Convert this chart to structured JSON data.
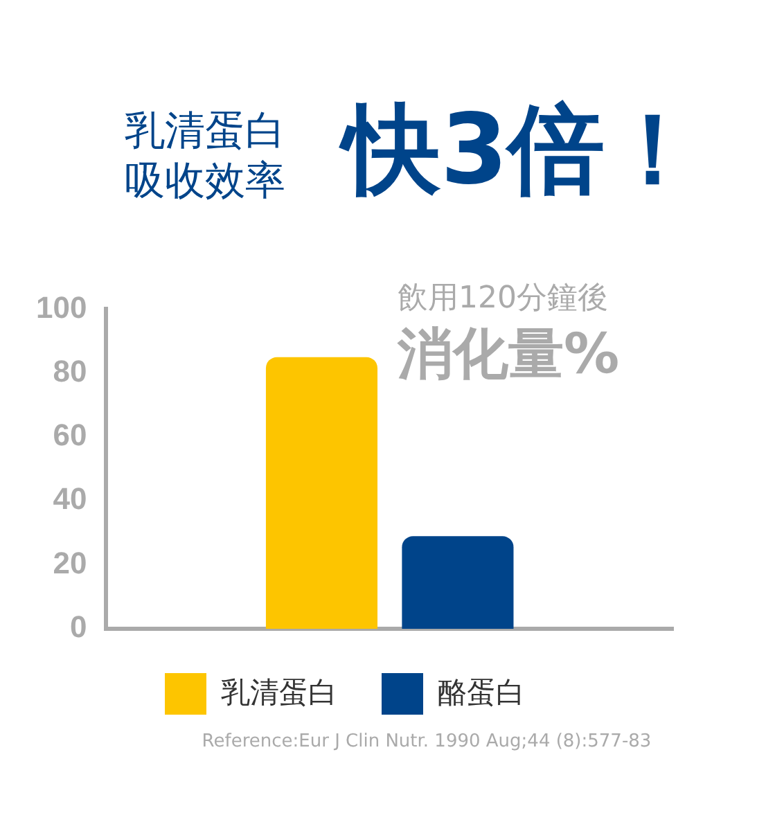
{
  "chart_data": {
    "type": "bar",
    "title": "乳清蛋白吸收效率",
    "subtitle": "快3倍！",
    "ylabel": "消化量%",
    "annotations": [
      "飲用120分鐘後",
      "Reference:Eur J Clin Nutr. 1990 Aug;44 (8):577-83"
    ],
    "categories": [
      null
    ],
    "series": [
      {
        "name": "乳清蛋白",
        "color": "#fdc500",
        "values": [
          85
        ]
      },
      {
        "name": "酪蛋白",
        "color": "#00448a",
        "values": [
          29
        ]
      }
    ],
    "ylim": [
      0,
      100
    ],
    "yticks": [
      0,
      20,
      40,
      60,
      80,
      100
    ],
    "grid": false,
    "legend": "bottom"
  }
}
